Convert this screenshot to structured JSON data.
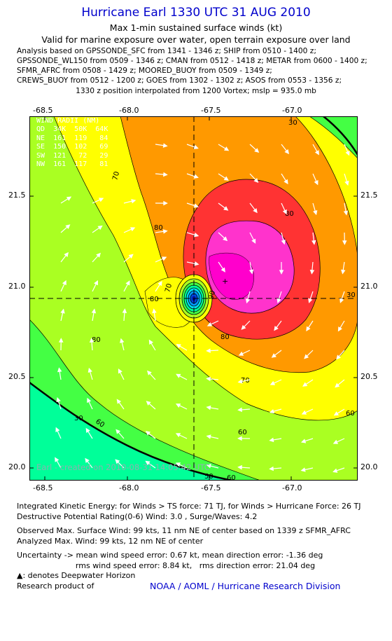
{
  "header": {
    "title": "Hurricane Earl 1330 UTC 31 AUG 2010",
    "subtitle_1": "Max 1-min sustained surface winds (kt)",
    "subtitle_2": "Valid for marine exposure over water, open terrain exposure over land"
  },
  "analysis_lines": [
    "Analysis based on GPSSONDE_SFC from 1341 - 1346 z; SHIP from 0510 - 1400 z;",
    "GPSSONDE_WL150 from 0509 - 1346 z; CMAN from 0512 - 1418 z; METAR from 0600 - 1400 z;",
    "SFMR_AFRC from 0508 - 1429 z; MOORED_BUOY from 0509 - 1349 z;",
    "CREWS_BUOY from 0512 - 1200 z; GOES from 1302 - 1302 z; ASOS from 0553 - 1356 z;"
  ],
  "position_line": "1330 z position interpolated from 1200 Vortex; mslp = 935.0 mb",
  "map": {
    "x_ticks": [
      "-68.5",
      "-68.0",
      "-67.5",
      "-67.0"
    ],
    "y_ticks": [
      "21.5",
      "21.0",
      "20.5",
      "20.0"
    ],
    "lon_range": [
      -68.6,
      -66.92
    ],
    "lat_range": [
      19.94,
      21.87
    ],
    "center": {
      "lon": -67.6,
      "lat": 20.93
    },
    "contour_labels": [
      "30",
      "70",
      "80",
      "80",
      "80",
      "90",
      "80",
      "70",
      "60",
      "60",
      "70",
      "80",
      "60",
      "60",
      "30",
      "30",
      "50"
    ],
    "credit": "Earl - created on 2010-08-31 14:05:42 UTC",
    "wind_radii": {
      "title": "WIND RADII (NM)",
      "header": "QD  34K  50K  64K",
      "rows": [
        "NE  161  119   84",
        "SE  150  102   69",
        "SW  121   72   29",
        "NW  161  117   81"
      ]
    },
    "colors": {
      "cyan": "#00ff99",
      "green": "#44ff44",
      "lime": "#aaff22",
      "yellow": "#ffff00",
      "orange": "#ff9900",
      "red": "#ff3333",
      "magenta": "#ff00cc"
    }
  },
  "bottom": {
    "ike": "Integrated Kinetic Energy:  for Winds > TS force: 71 TJ,  for Winds > Hurricane Force: 26 TJ",
    "dpr": "Destructive Potential Rating(0-6)   Wind: 3.0 , Surge/Waves: 4.2",
    "observed": "Observed Max. Surface Wind: 99 kts, 11 nm NE of center based on 1339 z SFMR_AFRC",
    "analyzed": "Analyzed Max. Wind: 99 kts, 12 nm NE of center",
    "uncertainty_1": "Uncertainty -> mean wind speed error: 0.67 kt,   mean direction error:  -1.36 deg",
    "uncertainty_2": "                        rms wind speed error: 8.84 kt,   rms direction error: 21.04 deg",
    "deepwater": ": denotes Deepwater Horizon",
    "research": "Research product of",
    "noaa": "NOAA / AOML / Hurricane Research Division"
  }
}
